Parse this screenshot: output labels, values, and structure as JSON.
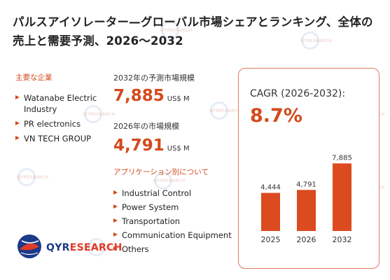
{
  "title": "パルスアイソレーター—グローバル市場シェアとランキング、全体の売上と需要予測、2026～2032",
  "companies_label": "主要な企業",
  "companies": [
    "Watanabe Electric Industry",
    "PR electronics",
    "VN TECH GROUP"
  ],
  "forecast_label": "2032年の予測市場規模",
  "forecast_value": "7,885",
  "forecast_unit": "US$ M",
  "current_label": "2026年の市場規模",
  "current_value": "4,791",
  "current_unit": "US$ M",
  "applications_label": "アプリケーション別について",
  "applications": [
    "Industrial Control",
    "Power System",
    "Transportation",
    "Communication Equipment",
    "Others"
  ],
  "cagr_label": "CAGR (2026-2032):",
  "cagr_value": "8.7%",
  "logo": {
    "brand": "QYRESEARCH",
    "part1": "QYR",
    "part2": "ESEARCH"
  },
  "colors": {
    "accent": "#d34a1c",
    "bar": "#dc4a1f",
    "logo_blue": "#1c3a8a"
  },
  "chart_data": {
    "type": "bar",
    "categories": [
      "2025",
      "2026",
      "2032"
    ],
    "values": [
      4444,
      4791,
      7885
    ],
    "data_labels": [
      "4,444",
      "4,791",
      "7,885"
    ],
    "ylim": [
      0,
      8000
    ],
    "grid": false
  }
}
